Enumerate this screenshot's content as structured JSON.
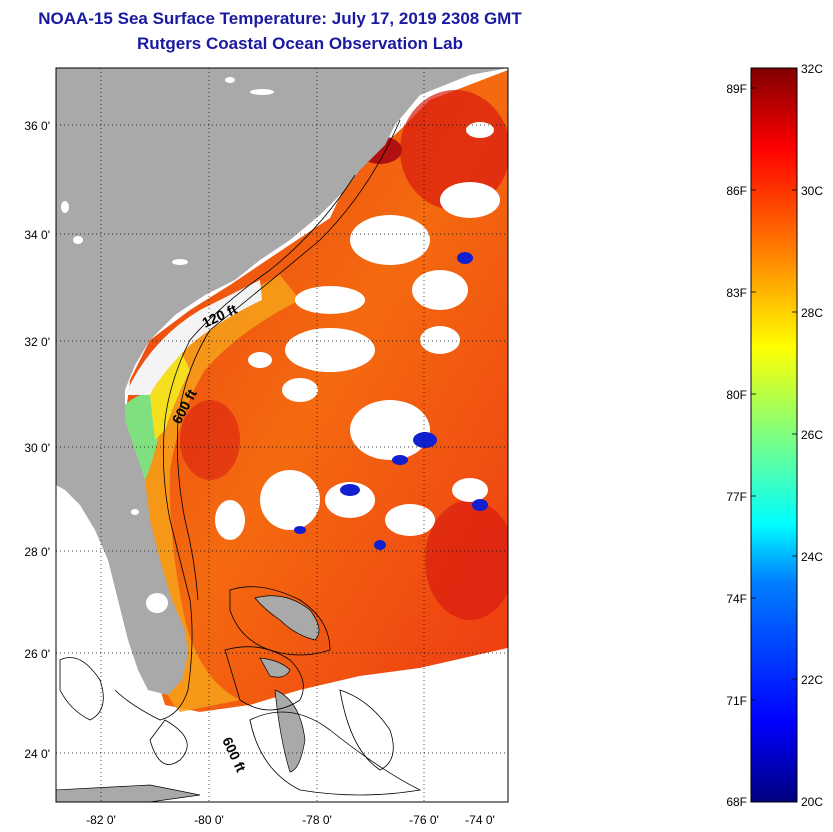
{
  "title": "NOAA-15 Sea Surface Temperature:  July 17, 2019 2308 GMT",
  "subtitle": "Rutgers Coastal Ocean Observation Lab",
  "map": {
    "lat_labels": [
      "36 0'",
      "34 0'",
      "32 0'",
      "30 0'",
      "28 0'",
      "26 0'",
      "24 0'"
    ],
    "lon_labels": [
      "-82 0'",
      "-80 0'",
      "-78 0'",
      "-76 0'",
      "-74 0'"
    ],
    "contour_labels": [
      "120 ft",
      "600 ft",
      "600 ft"
    ],
    "land_color": "#a9a9a9"
  },
  "colorbar": {
    "fahrenheit_labels": [
      "89F",
      "86F",
      "83F",
      "80F",
      "77F",
      "74F",
      "71F",
      "68F"
    ],
    "celsius_labels": [
      "32C",
      "30C",
      "28C",
      "26C",
      "24C",
      "22C",
      "20C"
    ],
    "range_c": [
      20,
      32
    ],
    "colors": [
      "#00007f",
      "#0000ff",
      "#007fff",
      "#00ffff",
      "#7fff7f",
      "#ffff00",
      "#ff7f00",
      "#ff0000",
      "#7f0000"
    ]
  }
}
